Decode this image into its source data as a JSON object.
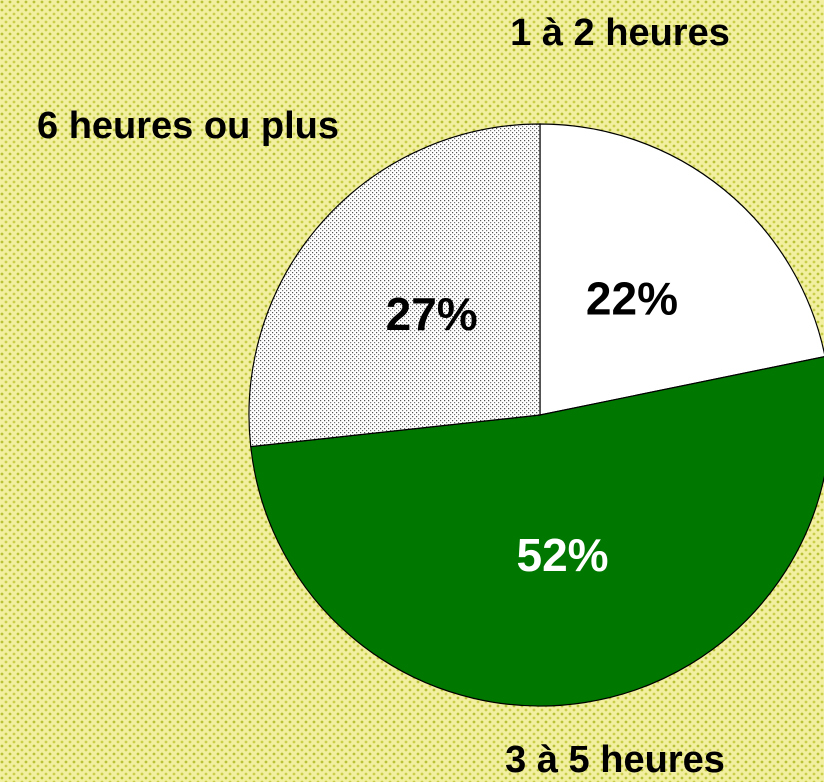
{
  "chart_data": {
    "type": "pie",
    "categories": [
      "1 à 2 heures",
      "3 à 5 heures",
      "6 heures ou plus"
    ],
    "values": [
      22,
      52,
      27
    ],
    "value_labels": [
      "22%",
      "52%",
      "27%"
    ],
    "colors": [
      "#ffffff",
      "#007800",
      "#d4d4d4"
    ],
    "start_angle": 0,
    "direction": "clockwise"
  }
}
